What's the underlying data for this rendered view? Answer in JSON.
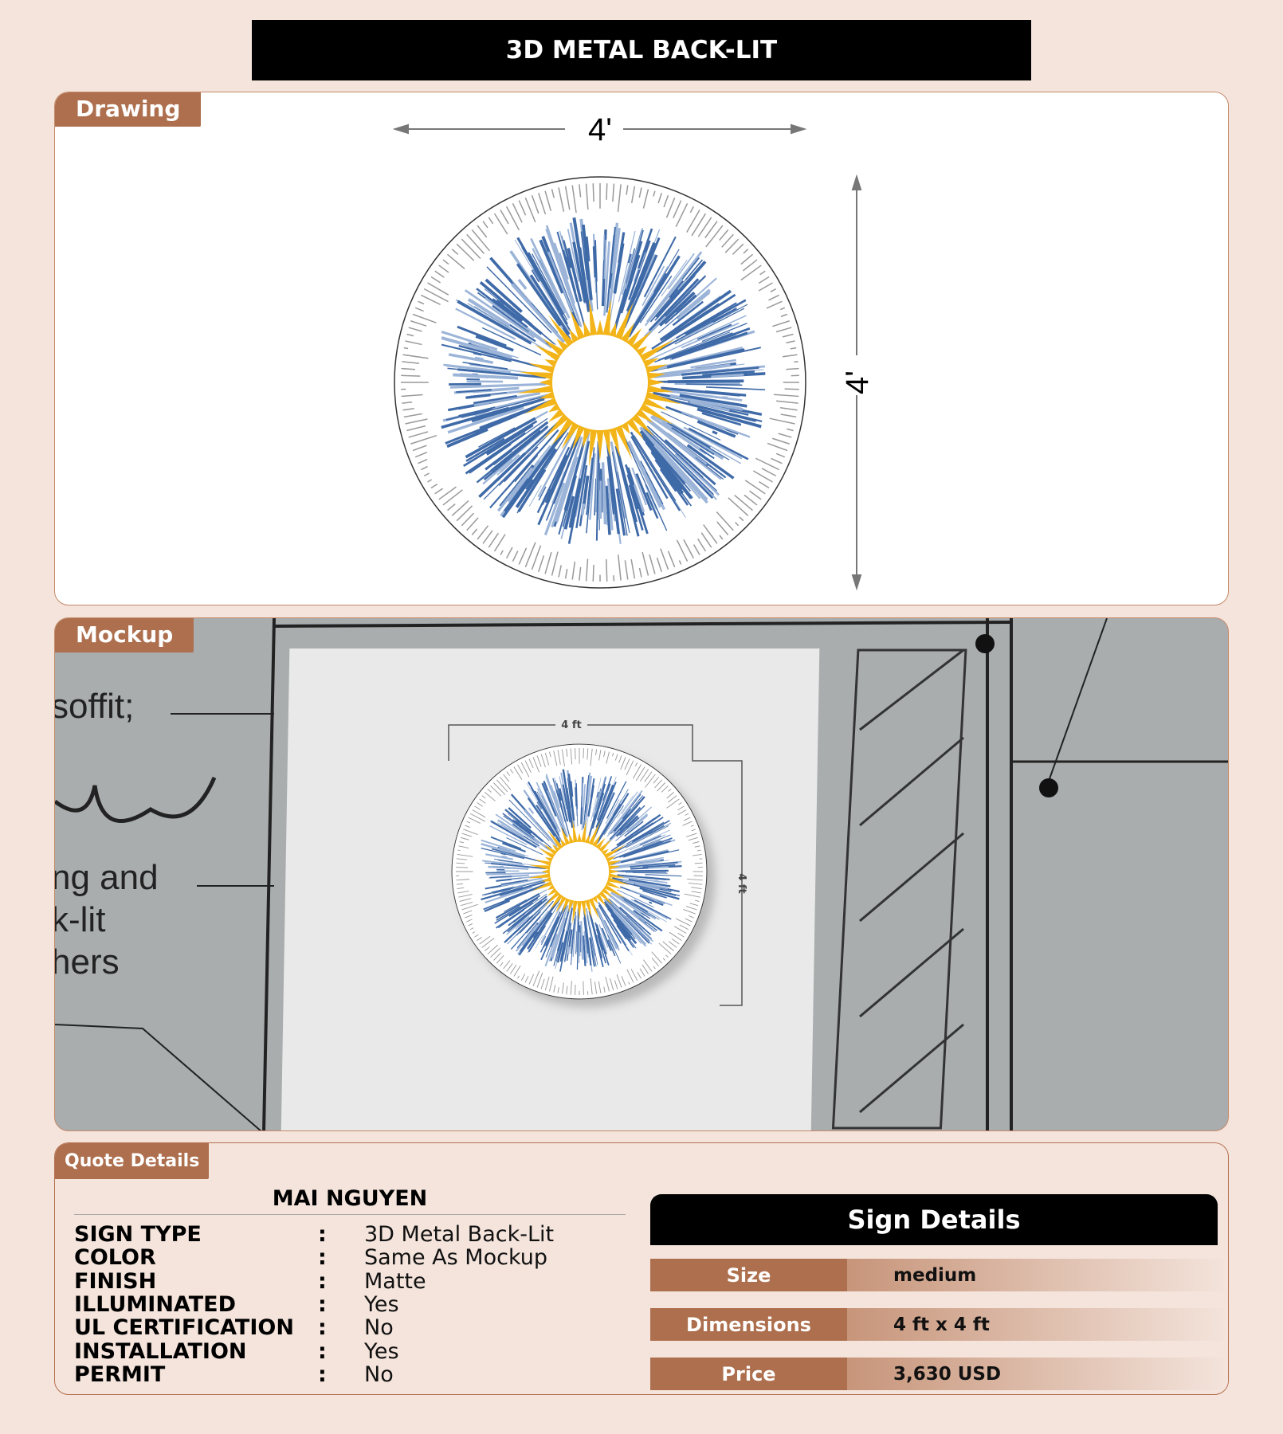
{
  "title": "3D METAL BACK-LIT",
  "drawing": {
    "tab": "Drawing",
    "width_label": "4'",
    "height_label": "4'"
  },
  "mockup": {
    "tab": "Mockup",
    "bg_text": [
      "soffit;",
      "ng and",
      "k-lit",
      "hers"
    ],
    "width_label": "4 ft",
    "height_label": "4 ft"
  },
  "quote": {
    "tab": "Quote Details",
    "customer": "MAI NGUYEN",
    "rows": [
      {
        "label": "SIGN TYPE",
        "value": "3D Metal Back-Lit"
      },
      {
        "label": "COLOR",
        "value": "Same As Mockup"
      },
      {
        "label": "FINISH",
        "value": "Matte"
      },
      {
        "label": "ILLUMINATED",
        "value": "Yes"
      },
      {
        "label": "UL CERTIFICATION",
        "value": "No"
      },
      {
        "label": "INSTALLATION",
        "value": "Yes"
      },
      {
        "label": "PERMIT",
        "value": "No"
      }
    ],
    "separator": ":"
  },
  "sign_details": {
    "title": "Sign Details",
    "rows": [
      {
        "label": "Size",
        "value": "medium"
      },
      {
        "label": "Dimensions",
        "value": "4 ft x 4 ft"
      },
      {
        "label": "Price",
        "value": "3,630 USD"
      }
    ]
  },
  "colors": {
    "accent": "#ad6f4d",
    "blue": "#3f6aa8",
    "yellow": "#f2b418"
  }
}
